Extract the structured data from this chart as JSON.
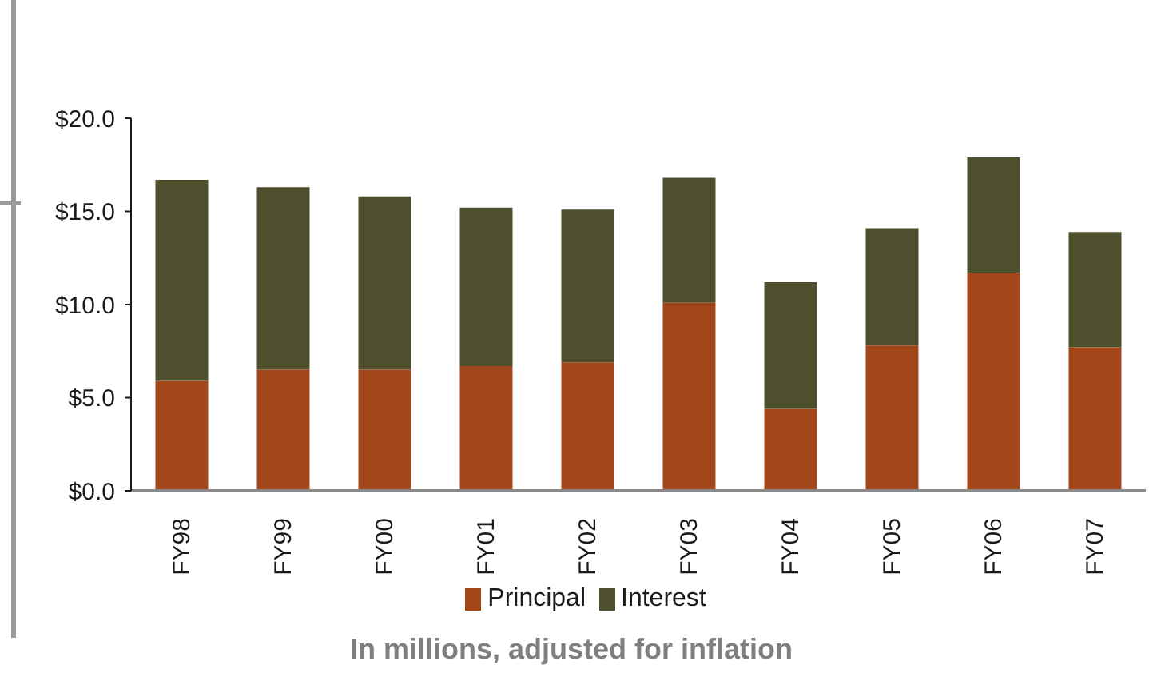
{
  "chart_data": {
    "type": "bar",
    "stacked": true,
    "categories": [
      "FY98",
      "FY99",
      "FY00",
      "FY01",
      "FY02",
      "FY03",
      "FY04",
      "FY05",
      "FY06",
      "FY07"
    ],
    "series": [
      {
        "name": "Principal",
        "color": "#a3471a",
        "values": [
          5.9,
          6.5,
          6.5,
          6.7,
          6.9,
          10.1,
          4.4,
          7.8,
          11.7,
          7.7
        ]
      },
      {
        "name": "Interest",
        "color": "#4e4f2c",
        "values": [
          10.8,
          9.8,
          9.3,
          8.5,
          8.2,
          6.7,
          6.8,
          6.3,
          6.2,
          6.2
        ]
      }
    ],
    "ylim": [
      0,
      20
    ],
    "yticks": [
      {
        "value": 0,
        "label": "$0.0"
      },
      {
        "value": 5,
        "label": "$5.0"
      },
      {
        "value": 10,
        "label": "$10.0"
      },
      {
        "value": 15,
        "label": "$15.0"
      },
      {
        "value": 20,
        "label": "$20.0"
      }
    ],
    "legend": "bottom",
    "annotations": [
      "In millions, adjusted for inflation"
    ]
  }
}
